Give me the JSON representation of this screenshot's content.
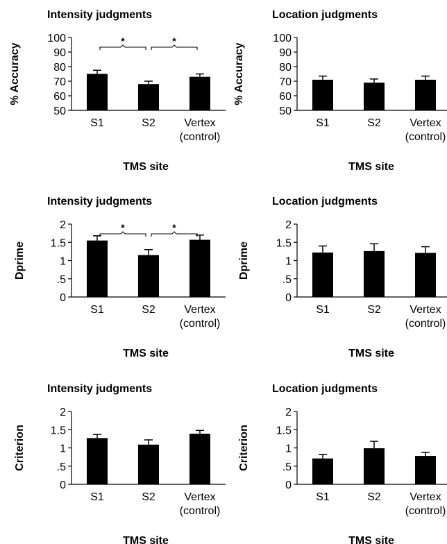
{
  "chart_data": [
    {
      "type": "bar",
      "title": "Intensity judgments",
      "xlabel": "TMS site",
      "ylabel": "% Accuracy",
      "categories": [
        "S1",
        "S2",
        "Vertex\n(control)"
      ],
      "values": [
        75,
        68,
        73
      ],
      "errors": [
        2.5,
        2.0,
        2.0
      ],
      "ylim": [
        50,
        100
      ],
      "yticks": [
        "100",
        "90",
        "80",
        "70",
        "60",
        "50"
      ],
      "significance": [
        {
          "from": 0,
          "to": 1,
          "label": "*"
        },
        {
          "from": 1,
          "to": 2,
          "label": "*"
        }
      ],
      "bar_color": "#000000",
      "grid": false
    },
    {
      "type": "bar",
      "title": "Location judgments",
      "xlabel": "TMS site",
      "ylabel": "% Accuracy",
      "categories": [
        "S1",
        "S2",
        "Vertex\n(control)"
      ],
      "values": [
        71,
        69,
        71
      ],
      "errors": [
        2.5,
        2.5,
        2.5
      ],
      "ylim": [
        50,
        100
      ],
      "yticks": [
        "100",
        "90",
        "80",
        "70",
        "60",
        "50"
      ],
      "significance": [],
      "bar_color": "#000000",
      "grid": false
    },
    {
      "type": "bar",
      "title": "Intensity judgments",
      "xlabel": "TMS site",
      "ylabel": "Dprime",
      "categories": [
        "S1",
        "S2",
        "Vertex\n(control)"
      ],
      "values": [
        1.55,
        1.15,
        1.57
      ],
      "errors": [
        0.13,
        0.15,
        0.13
      ],
      "ylim": [
        0,
        2
      ],
      "yticks": [
        "2",
        "1.5",
        "1",
        ".5",
        "0"
      ],
      "significance": [
        {
          "from": 0,
          "to": 1,
          "label": "*"
        },
        {
          "from": 1,
          "to": 2,
          "label": "*"
        }
      ],
      "bar_color": "#000000",
      "grid": false
    },
    {
      "type": "bar",
      "title": "Location judgments",
      "xlabel": "TMS site",
      "ylabel": "Dprime",
      "categories": [
        "S1",
        "S2",
        "Vertex\n(control)"
      ],
      "values": [
        1.22,
        1.26,
        1.21
      ],
      "errors": [
        0.18,
        0.2,
        0.17
      ],
      "ylim": [
        0,
        2
      ],
      "yticks": [
        "2",
        "1.5",
        "1",
        ".5",
        "0"
      ],
      "significance": [],
      "bar_color": "#000000",
      "grid": false
    },
    {
      "type": "bar",
      "title": "Intensity judgments",
      "xlabel": "TMS site",
      "ylabel": "Criterion",
      "categories": [
        "S1",
        "S2",
        "Vertex\n(control)"
      ],
      "values": [
        1.27,
        1.09,
        1.39
      ],
      "errors": [
        0.1,
        0.13,
        0.09
      ],
      "ylim": [
        0,
        2
      ],
      "yticks": [
        "2",
        "1.5",
        "1",
        ".5",
        "0"
      ],
      "significance": [],
      "bar_color": "#000000",
      "grid": false
    },
    {
      "type": "bar",
      "title": "Location judgments",
      "xlabel": "TMS site",
      "ylabel": "Criterion",
      "categories": [
        "S1",
        "S2",
        "Vertex\n(control)"
      ],
      "values": [
        0.71,
        0.99,
        0.78
      ],
      "errors": [
        0.11,
        0.19,
        0.1
      ],
      "ylim": [
        0,
        2
      ],
      "yticks": [
        "2",
        "1.5",
        "1",
        ".5",
        "0"
      ],
      "significance": [],
      "bar_color": "#000000",
      "grid": false
    }
  ]
}
